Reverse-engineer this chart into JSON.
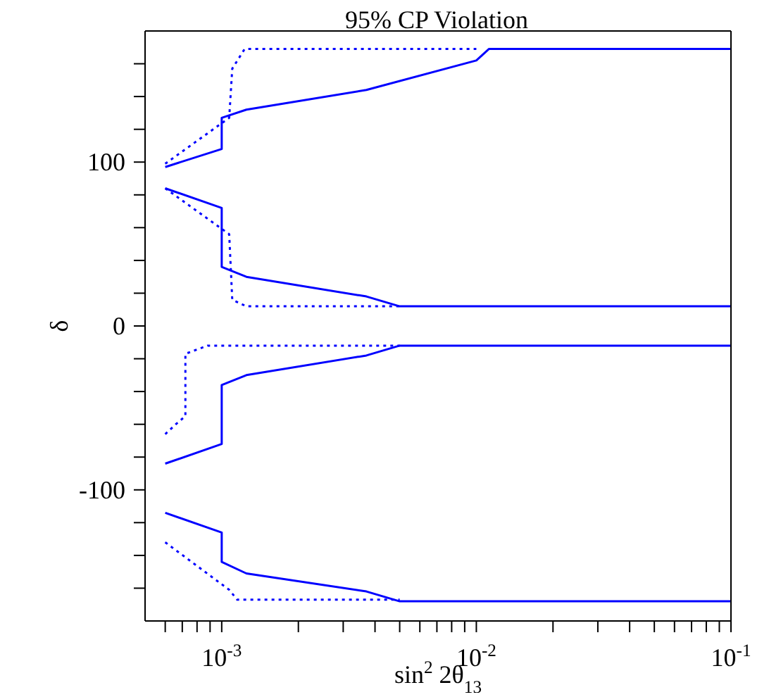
{
  "chart_data": {
    "type": "line",
    "title": "95% CP Violation",
    "xlabel": "sin$^{2}$ 2θ$_{13}$",
    "ylabel": "δ",
    "log": "x",
    "legend": false,
    "marker": "none",
    "xlim": [
      0.0005,
      0.1
    ],
    "ylim": [
      -180,
      180
    ],
    "xticks": [
      {
        "value": 0.0006,
        "label": null
      },
      {
        "value": 0.0007,
        "label": null
      },
      {
        "value": 0.0008,
        "label": null
      },
      {
        "value": 0.0009,
        "label": null
      },
      {
        "value": 0.001,
        "label": "10$^{-3}$"
      },
      {
        "value": 0.002,
        "label": null
      },
      {
        "value": 0.003,
        "label": null
      },
      {
        "value": 0.004,
        "label": null
      },
      {
        "value": 0.005,
        "label": null
      },
      {
        "value": 0.006,
        "label": null
      },
      {
        "value": 0.007,
        "label": null
      },
      {
        "value": 0.008,
        "label": null
      },
      {
        "value": 0.009,
        "label": null
      },
      {
        "value": 0.01,
        "label": "10$^{-2}$"
      },
      {
        "value": 0.02,
        "label": null
      },
      {
        "value": 0.03,
        "label": null
      },
      {
        "value": 0.04,
        "label": null
      },
      {
        "value": 0.05,
        "label": null
      },
      {
        "value": 0.06,
        "label": null
      },
      {
        "value": 0.07,
        "label": null
      },
      {
        "value": 0.08,
        "label": null
      },
      {
        "value": 0.09,
        "label": null
      },
      {
        "value": 0.1,
        "label": "10$^{-1}$"
      }
    ],
    "yticks": [
      {
        "value": -160,
        "label": null
      },
      {
        "value": -140,
        "label": null
      },
      {
        "value": -120,
        "label": null
      },
      -100,
      {
        "value": -80,
        "label": null
      },
      {
        "value": -60,
        "label": null
      },
      {
        "value": -40,
        "label": null
      },
      {
        "value": -20,
        "label": null
      },
      0,
      {
        "value": 20,
        "label": null
      },
      {
        "value": 40,
        "label": null
      },
      {
        "value": 60,
        "label": null
      },
      {
        "value": 80,
        "label": null
      },
      100,
      {
        "value": 120,
        "label": null
      },
      {
        "value": 140,
        "label": null
      },
      {
        "value": 160,
        "label": null
      }
    ],
    "series": [
      {
        "color": "#0000ff",
        "line_style": "solid",
        "x": [
          0.0006,
          0.001,
          0.001,
          0.00125,
          0.0037,
          0.01,
          0.0112,
          0.1
        ],
        "values": [
          97,
          108,
          127,
          132,
          144,
          162,
          169,
          169
        ]
      },
      {
        "color": "#0000ff",
        "line_style": "dotted",
        "x": [
          0.0006,
          0.00107,
          0.0011,
          0.00123,
          0.01
        ],
        "values": [
          99,
          127,
          157,
          169,
          169
        ]
      },
      {
        "color": "#0000ff",
        "line_style": "solid",
        "x": [
          0.0006,
          0.001,
          0.001,
          0.00125,
          0.0037,
          0.005,
          0.1
        ],
        "values": [
          84,
          72,
          36,
          30,
          18,
          12,
          12
        ]
      },
      {
        "color": "#0000ff",
        "line_style": "dotted",
        "x": [
          0.0006,
          0.00107,
          0.0011,
          0.00125,
          0.005
        ],
        "values": [
          84,
          56,
          16,
          12,
          12
        ]
      },
      {
        "color": "#0000ff",
        "line_style": "solid",
        "x": [
          0.0006,
          0.001,
          0.001,
          0.00125,
          0.0037,
          0.005,
          0.1
        ],
        "values": [
          -84,
          -72,
          -36,
          -30,
          -18,
          -12,
          -12
        ]
      },
      {
        "color": "#0000ff",
        "line_style": "dotted",
        "x": [
          0.0006,
          0.00066,
          0.00072,
          0.00072,
          0.00088,
          0.005
        ],
        "values": [
          -66,
          -60,
          -55,
          -17,
          -12,
          -12
        ]
      },
      {
        "color": "#0000ff",
        "line_style": "solid",
        "x": [
          0.0006,
          0.001,
          0.001,
          0.00125,
          0.0037,
          0.005,
          0.1
        ],
        "values": [
          -114,
          -126,
          -144,
          -151,
          -162,
          -168,
          -168
        ]
      },
      {
        "color": "#0000ff",
        "line_style": "dotted",
        "x": [
          0.0006,
          0.00107,
          0.00115,
          0.005
        ],
        "values": [
          -132,
          -161,
          -167,
          -167
        ]
      }
    ]
  }
}
